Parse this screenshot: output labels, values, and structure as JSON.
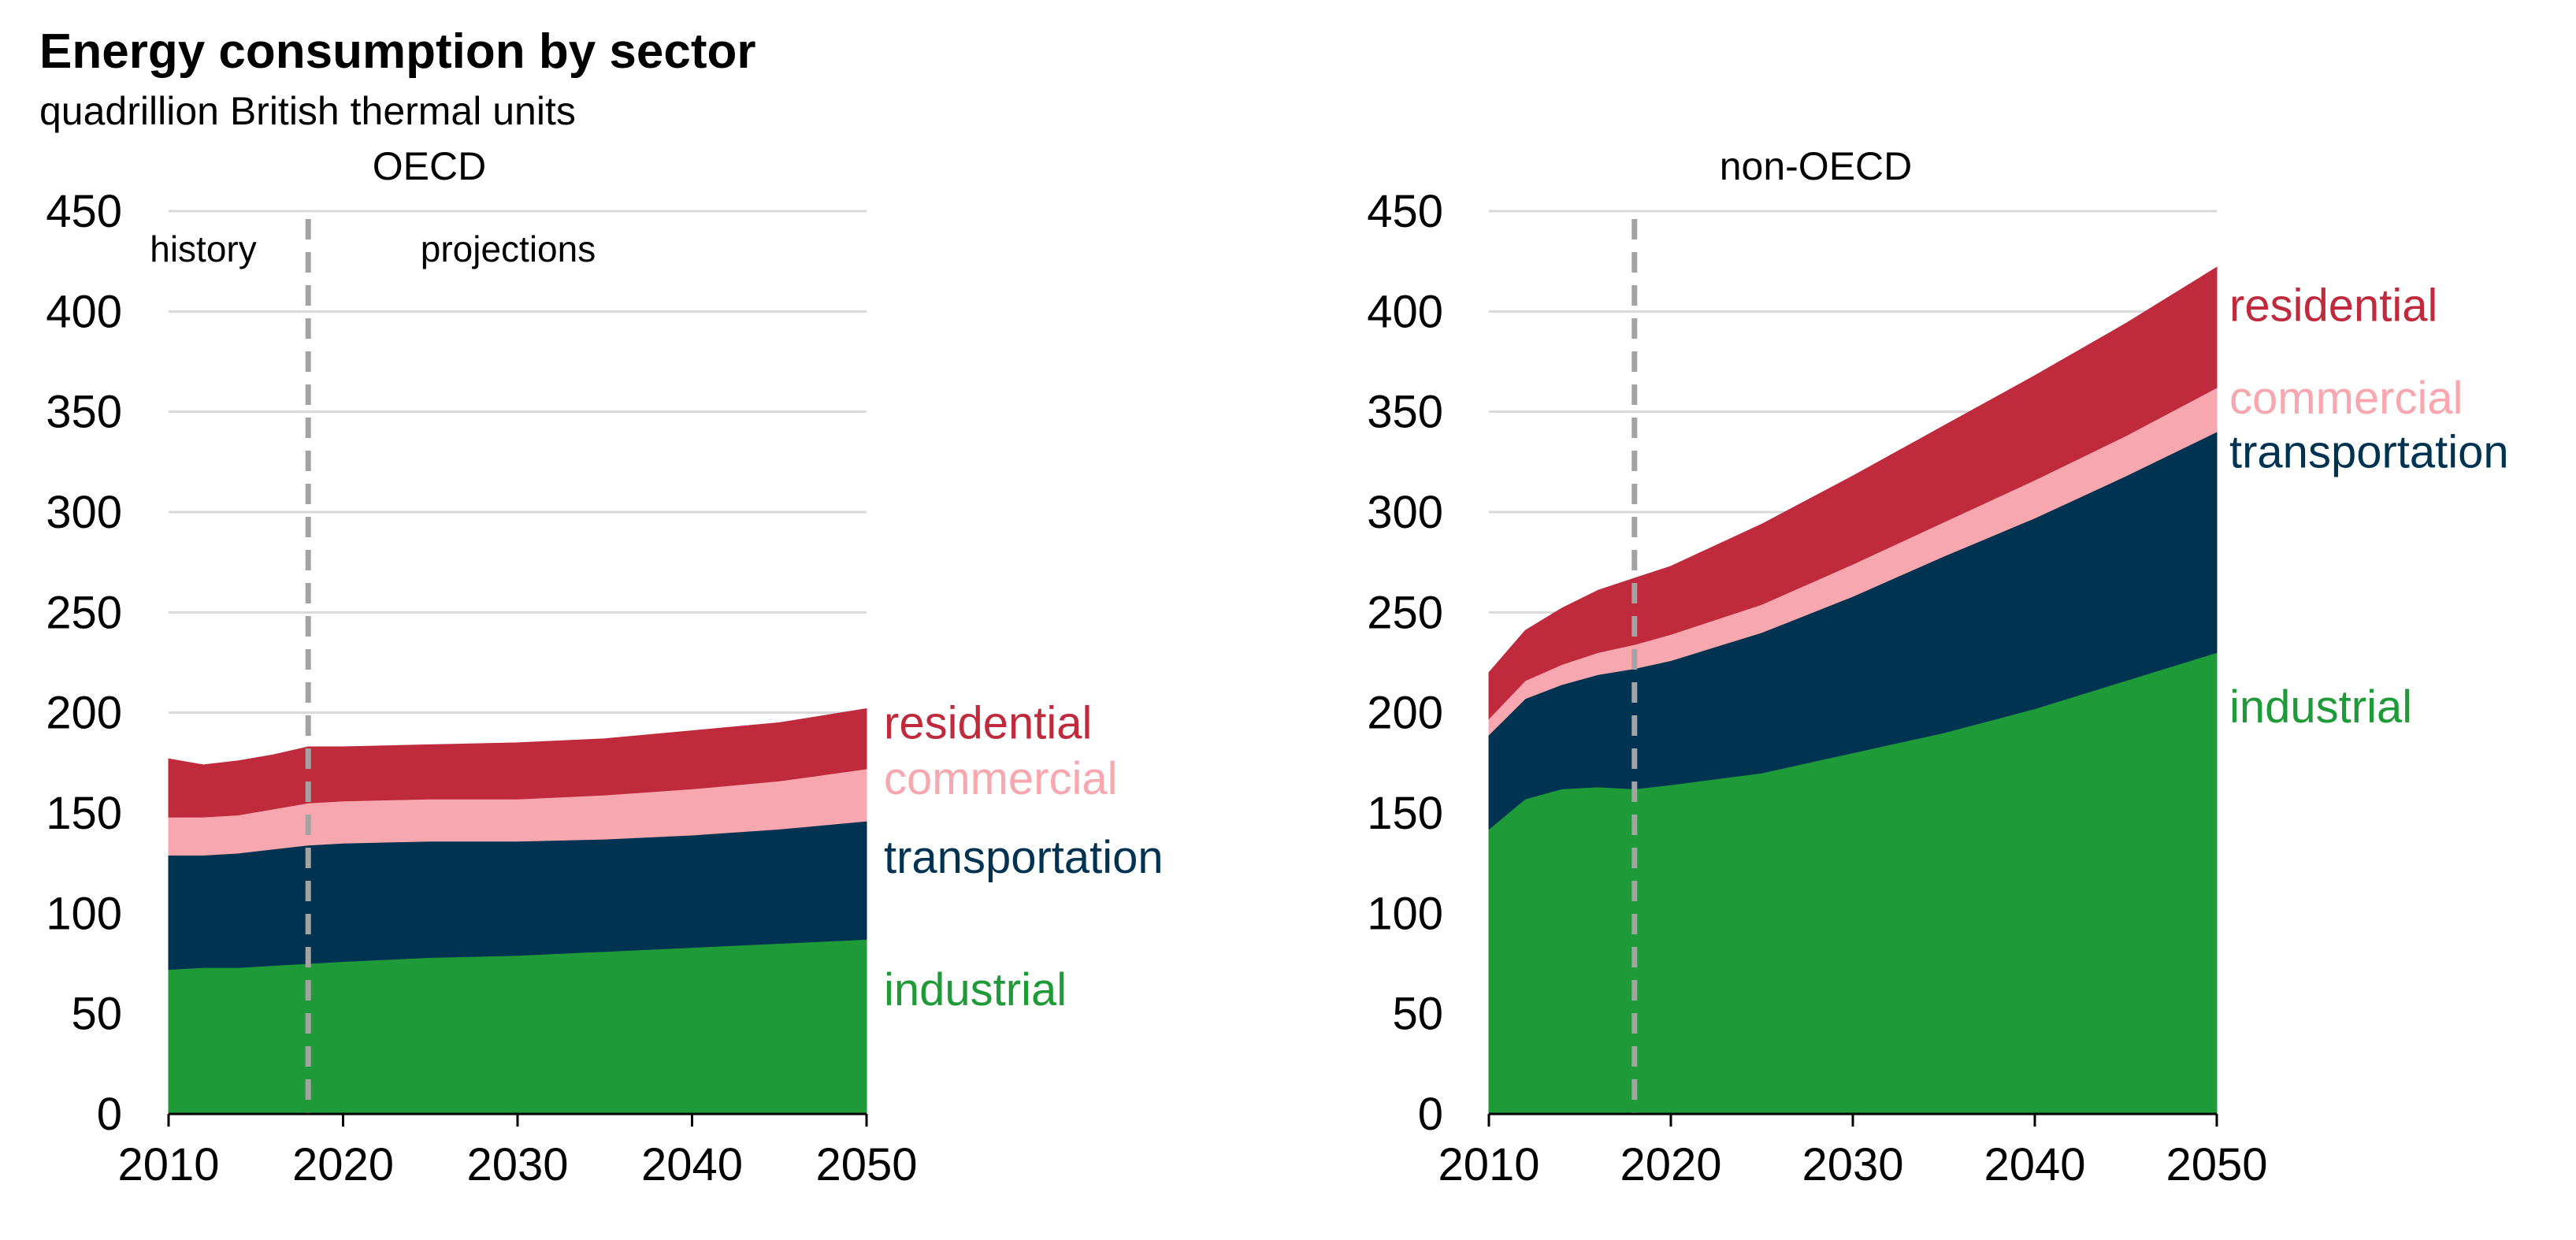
{
  "chart_data": {
    "type": "area",
    "title": "Energy consumption by sector",
    "subtitle": "quadrillion British thermal units",
    "stacked": true,
    "ylim": [
      0,
      450
    ],
    "yticks": [
      "0",
      "50",
      "100",
      "150",
      "200",
      "250",
      "300",
      "350",
      "400",
      "450"
    ],
    "xlim": [
      2010,
      2050
    ],
    "xticks": [
      "2010",
      "2020",
      "2030",
      "2040",
      "2050"
    ],
    "history_end_year": 2018,
    "colors": {
      "industrial": "#1f9a38",
      "transportation": "#003352",
      "commercial": "#f7a7ad",
      "residential": "#bf2a3d"
    },
    "panels": [
      {
        "name": "OECD",
        "period_labels": {
          "history": "history",
          "projections": "projections"
        },
        "x": [
          2010,
          2012,
          2014,
          2016,
          2018,
          2020,
          2025,
          2030,
          2035,
          2040,
          2045,
          2050
        ],
        "series": [
          {
            "name": "industrial",
            "values": [
              72,
              73,
              73,
              74,
              75,
              76,
              78,
              79,
              81,
              83,
              85,
              87
            ]
          },
          {
            "name": "transportation",
            "values": [
              57,
              56,
              57,
              58,
              59,
              59,
              58,
              57,
              56,
              56,
              57,
              59
            ]
          },
          {
            "name": "commercial",
            "values": [
              19,
              19,
              19,
              20,
              21,
              21,
              21,
              21,
              22,
              23,
              24,
              26
            ]
          },
          {
            "name": "residential",
            "values": [
              29,
              26,
              27,
              27,
              28,
              27,
              27,
              28,
              28,
              29,
              29,
              30
            ]
          }
        ]
      },
      {
        "name": "non-OECD",
        "period_labels": {
          "history": "",
          "projections": ""
        },
        "x": [
          2010,
          2012,
          2014,
          2016,
          2018,
          2020,
          2025,
          2030,
          2035,
          2040,
          2045,
          2050
        ],
        "series": [
          {
            "name": "industrial",
            "values": [
              142,
              157,
              162,
              163,
              162,
              164,
              170,
              180,
              190,
              202,
              216,
              230
            ]
          },
          {
            "name": "transportation",
            "values": [
              47,
              50,
              52,
              56,
              60,
              62,
              70,
              78,
              88,
              95,
              102,
              110
            ]
          },
          {
            "name": "commercial",
            "values": [
              8,
              9,
              10,
              11,
              12,
              13,
              14,
              16,
              17,
              19,
              20,
              22
            ]
          },
          {
            "name": "residential",
            "values": [
              23,
              25,
              28,
              31,
              33,
              34,
              40,
              44,
              48,
              52,
              56,
              60
            ]
          }
        ]
      }
    ]
  }
}
